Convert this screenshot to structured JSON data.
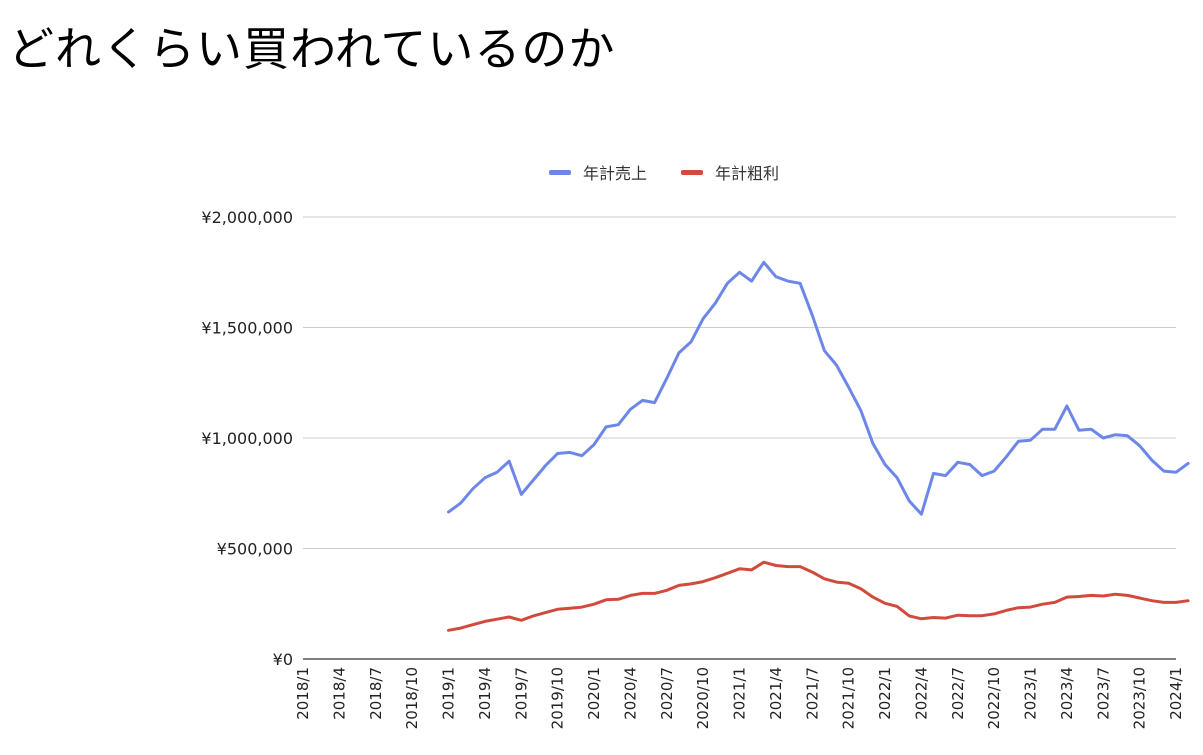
{
  "page": {
    "title": "どれくらい買われているのか"
  },
  "chart_data": {
    "type": "line",
    "title": "",
    "xlabel": "",
    "ylabel": "",
    "ylim": [
      0,
      2000000
    ],
    "y_ticks": [
      {
        "value": 0,
        "label": "¥0"
      },
      {
        "value": 500000,
        "label": "¥500,000"
      },
      {
        "value": 1000000,
        "label": "¥1,000,000"
      },
      {
        "value": 1500000,
        "label": "¥1,500,000"
      },
      {
        "value": 2000000,
        "label": "¥2,000,000"
      }
    ],
    "x_tick_labels": [
      "2018/1",
      "2018/4",
      "2018/7",
      "2018/10",
      "2019/1",
      "2019/4",
      "2019/7",
      "2019/10",
      "2020/1",
      "2020/4",
      "2020/7",
      "2020/10",
      "2021/1",
      "2021/4",
      "2021/7",
      "2021/10",
      "2022/1",
      "2022/4",
      "2022/7",
      "2022/10",
      "2023/1",
      "2023/4",
      "2023/7",
      "2023/10",
      "2024/1"
    ],
    "x_start": "2018/1",
    "x_end": "2024/1",
    "legend_position": "top",
    "grid": true,
    "series": [
      {
        "name": "年計売上",
        "color": "#6d87e8",
        "start": "2019/1",
        "values": [
          665000,
          705000,
          770000,
          820000,
          845000,
          895000,
          745000,
          810000,
          875000,
          930000,
          935000,
          920000,
          970000,
          1050000,
          1060000,
          1130000,
          1170000,
          1160000,
          1270000,
          1385000,
          1435000,
          1540000,
          1610000,
          1700000,
          1750000,
          1710000,
          1795000,
          1730000,
          1710000,
          1700000,
          1555000,
          1395000,
          1330000,
          1230000,
          1125000,
          975000,
          880000,
          820000,
          715000,
          655000,
          840000,
          830000,
          890000,
          880000,
          830000,
          850000,
          915000,
          985000,
          990000,
          1040000,
          1040000,
          1145000,
          1035000,
          1040000,
          1000000,
          1015000,
          1010000,
          965000,
          900000,
          850000,
          845000,
          885000
        ]
      },
      {
        "name": "年計粗利",
        "color": "#d14b3d",
        "start": "2019/1",
        "values": [
          130000,
          140000,
          155000,
          170000,
          180000,
          190000,
          175000,
          195000,
          210000,
          225000,
          230000,
          235000,
          248000,
          268000,
          270000,
          288000,
          297000,
          297000,
          311000,
          333000,
          340000,
          350000,
          368000,
          388000,
          408000,
          403000,
          438000,
          423000,
          418000,
          418000,
          393000,
          363000,
          348000,
          343000,
          318000,
          280000,
          252000,
          238000,
          195000,
          182000,
          188000,
          185000,
          198000,
          196000,
          196000,
          204000,
          220000,
          232000,
          235000,
          248000,
          256000,
          280000,
          283000,
          288000,
          285000,
          293000,
          288000,
          276000,
          264000,
          256000,
          256000,
          264000
        ]
      }
    ]
  }
}
